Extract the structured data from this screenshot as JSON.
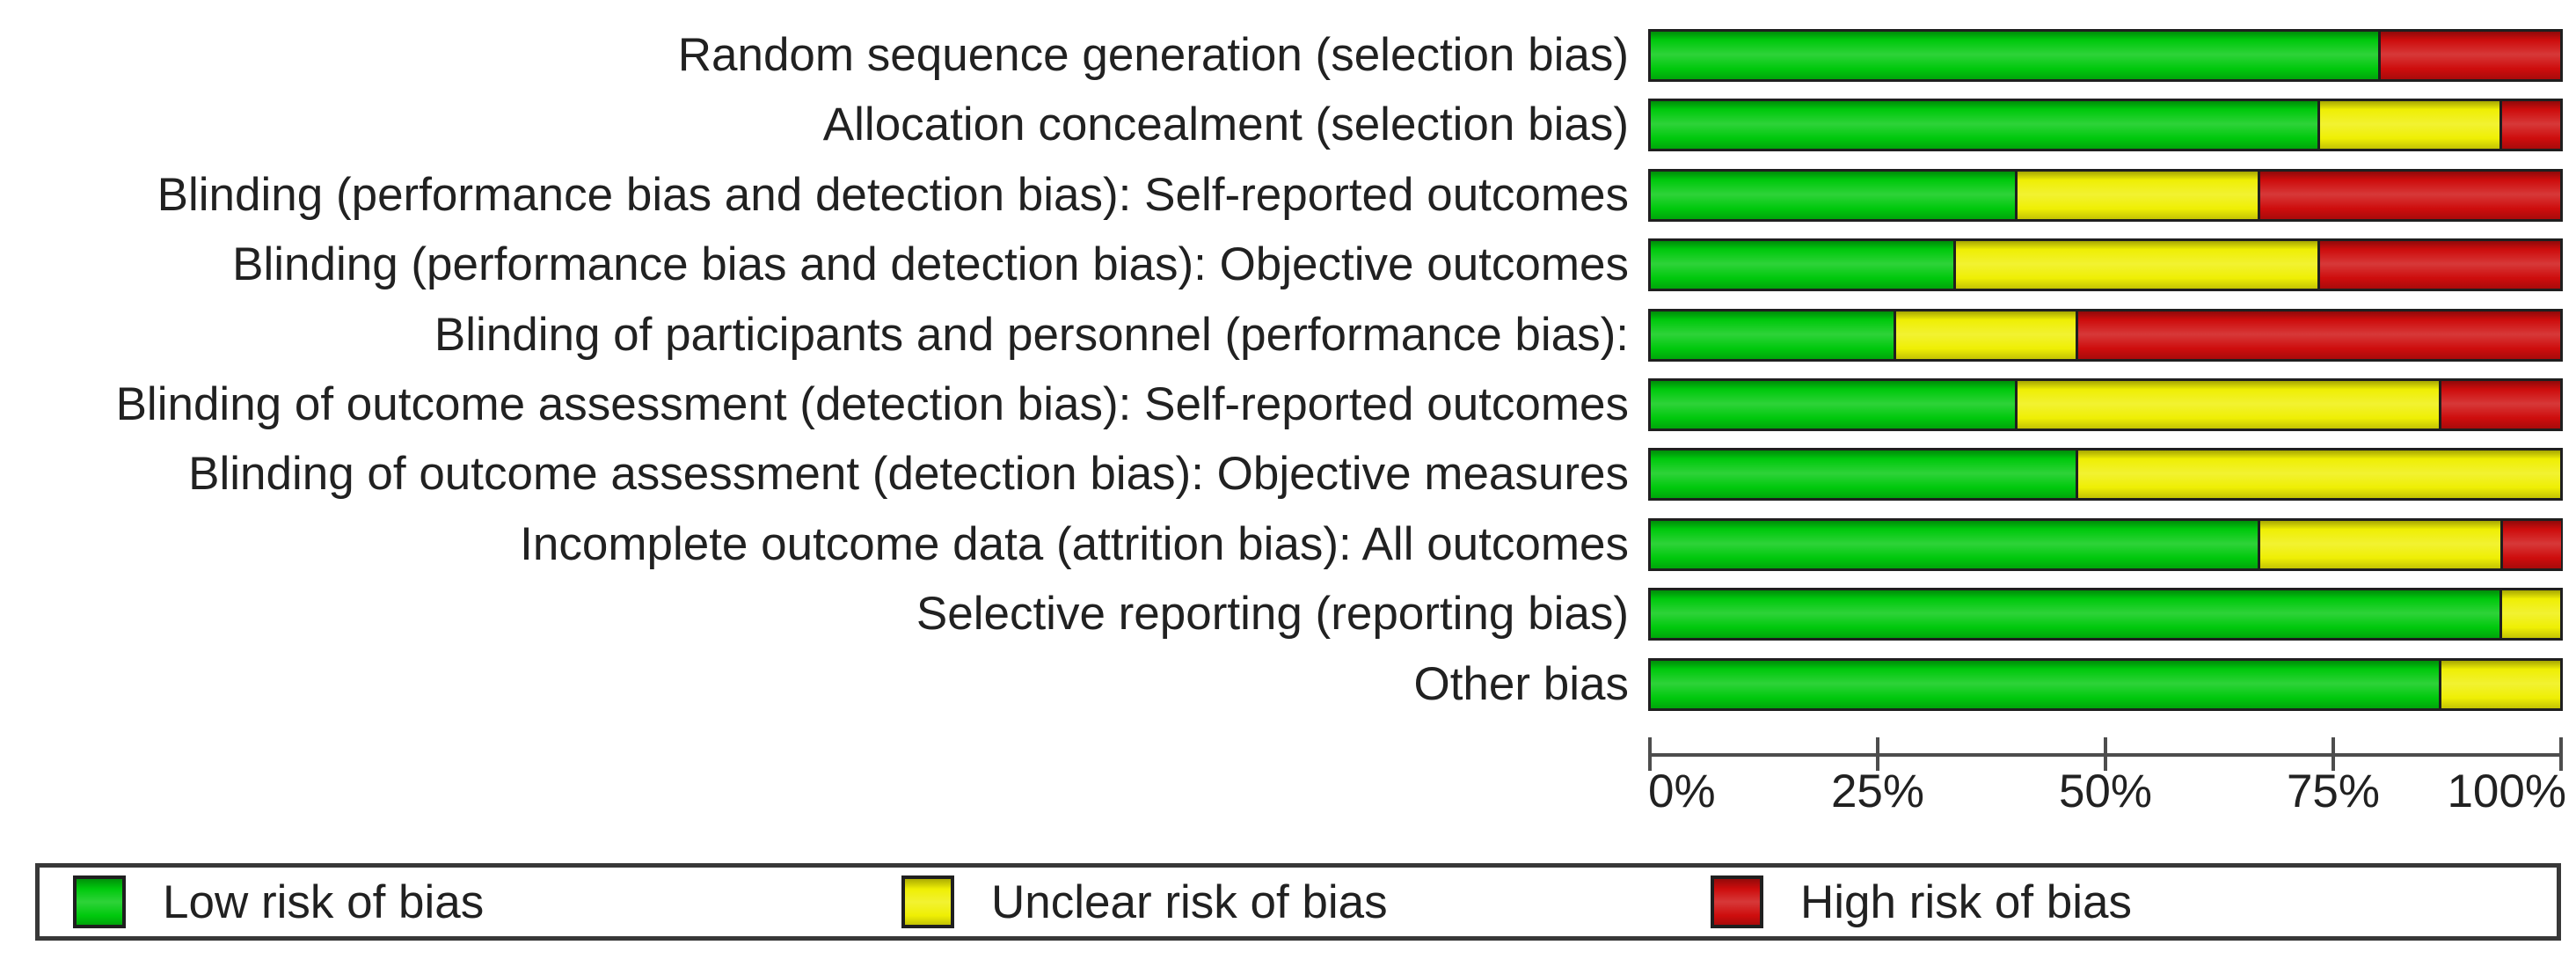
{
  "figure": {
    "background": "#ffffff",
    "text_color": "#212121",
    "border_color": "#1f1f1f"
  },
  "chart_data": {
    "type": "bar",
    "orientation": "horizontal-stacked",
    "title": "",
    "xlabel": "",
    "ylabel": "",
    "xlim": [
      0,
      100
    ],
    "grid": false,
    "legend_position": "bottom",
    "x_ticks": [
      "0%",
      "25%",
      "50%",
      "75%",
      "100%"
    ],
    "x_tick_values": [
      0,
      25,
      50,
      75,
      100
    ],
    "categories": [
      "Random sequence generation (selection bias)",
      "Allocation concealment (selection bias)",
      "Blinding (performance bias and detection bias): Self-reported outcomes",
      "Blinding (performance bias and detection bias): Objective outcomes",
      "Blinding of participants and personnel (performance bias):",
      "Blinding of outcome assessment (detection bias): Self-reported outcomes",
      "Blinding of outcome assessment (detection bias): Objective measures",
      "Incomplete outcome data (attrition bias): All outcomes",
      "Selective reporting (reporting bias)",
      "Other bias"
    ],
    "series": [
      {
        "name": "Low risk of bias",
        "color": "#00c90d",
        "values": [
          80,
          73.3,
          40,
          33.3,
          26.7,
          40,
          46.7,
          66.7,
          93.3,
          86.7
        ]
      },
      {
        "name": "Unclear risk of bias",
        "color": "#efef04",
        "values": [
          0,
          20,
          26.7,
          40,
          20,
          46.7,
          53.3,
          26.7,
          6.7,
          13.3
        ]
      },
      {
        "name": "High risk of bias",
        "color": "#ce0d0d",
        "values": [
          20,
          6.7,
          33.3,
          26.7,
          53.3,
          13.3,
          0,
          6.7,
          0,
          0
        ]
      }
    ]
  },
  "legend": {
    "items": [
      {
        "label": "Low risk of bias",
        "color": "#00c90d"
      },
      {
        "label": "Unclear risk of bias",
        "color": "#efef04"
      },
      {
        "label": "High risk of bias",
        "color": "#ce0d0d"
      }
    ]
  }
}
